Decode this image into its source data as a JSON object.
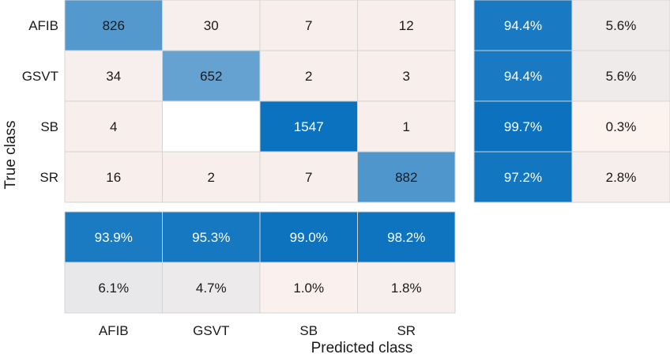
{
  "chart_data": {
    "type": "heatmap",
    "title": "",
    "xlabel": "Predicted class",
    "ylabel": "True class",
    "classes": [
      "AFIB",
      "GSVT",
      "SB",
      "SR"
    ],
    "matrix": [
      [
        826,
        30,
        7,
        12
      ],
      [
        34,
        652,
        2,
        3
      ],
      [
        4,
        null,
        1547,
        1
      ],
      [
        16,
        2,
        7,
        882
      ]
    ],
    "row_summary": [
      [
        "94.4%",
        "5.6%"
      ],
      [
        "94.4%",
        "5.6%"
      ],
      [
        "99.7%",
        "0.3%"
      ],
      [
        "97.2%",
        "2.8%"
      ]
    ],
    "column_summary": {
      "correct": [
        "93.9%",
        "95.3%",
        "99.0%",
        "98.2%"
      ],
      "incorrect": [
        "6.1%",
        "4.7%",
        "1.0%",
        "1.8%"
      ]
    },
    "colors": {
      "high": "#0b72bf",
      "low": "#fdf2ee",
      "empty": "#ffffff",
      "grid": "#d4d4d4",
      "text_dark": "#1a1a1a",
      "text_light": "#ffffff"
    }
  }
}
